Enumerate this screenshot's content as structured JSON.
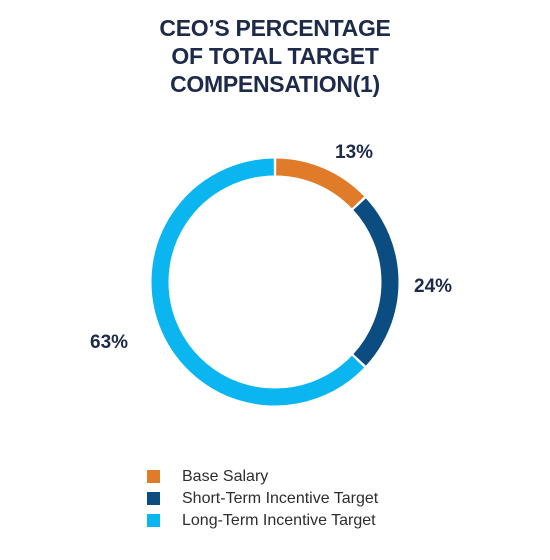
{
  "chart_data": {
    "type": "pie",
    "title_lines": [
      "CEO’S PERCENTAGE",
      "OF TOTAL TARGET",
      "COMPENSATION(1)"
    ],
    "categories": [
      "Base Salary",
      "Short-Term Incentive Target",
      "Long-Term Incentive Target"
    ],
    "values": [
      13,
      24,
      63
    ],
    "value_labels": [
      "13%",
      "24%",
      "63%"
    ],
    "colors": [
      "#e07b2a",
      "#0b4d80",
      "#0bb5f0"
    ],
    "style": "donut",
    "legend_position": "bottom"
  }
}
